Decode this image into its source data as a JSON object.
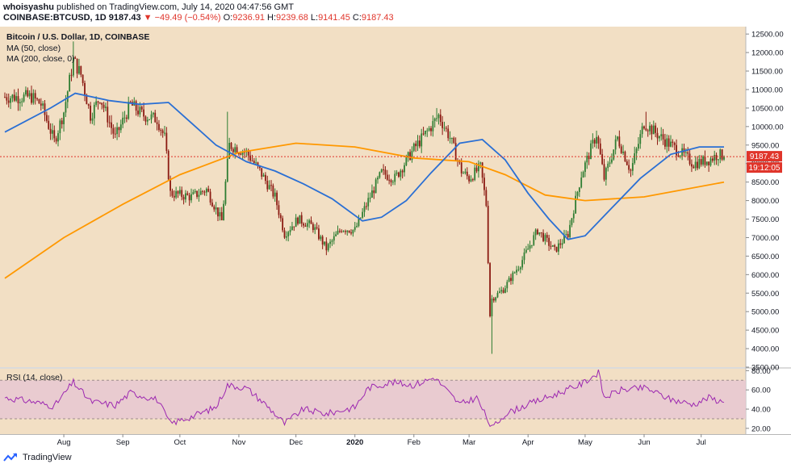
{
  "header": {
    "line1_user": "whoisyashu",
    "line1_text": "published on TradingView.com, July 14, 2020 04:47:56 GMT",
    "symbol": "COINBASE:BTCUSD, 1D",
    "last": "9187.43",
    "change_arrow": "▼",
    "change": "−49.49 (−0.54%)",
    "o_label": "O:",
    "o_value": "9236.91",
    "h_label": "H:",
    "h_value": "9239.68",
    "l_label": "L:",
    "l_value": "9141.45",
    "c_label": "C:",
    "c_value": "9187.43"
  },
  "legend": {
    "title": "Bitcoin / U.S. Dollar, 1D, COINBASE",
    "ma50": "MA (50, close)",
    "ma200": "MA (200, close, 0)",
    "rsi": "RSI (14, close)"
  },
  "price_tag": "9187.43",
  "time_tag": "19:12:05",
  "footer_brand": "TradingView",
  "colors": {
    "background": "#f2dfc4",
    "up": "#2e7d32",
    "down": "#8b1a12",
    "ma50": "#2a6fd4",
    "ma200": "#ff9800",
    "rsi_line": "#9c27b0",
    "rsi_band": "#e8c8d2",
    "price_tag": "#e0352b"
  },
  "chart_data": [
    {
      "type": "candlestick",
      "title": "Bitcoin / U.S. Dollar, 1D, COINBASE",
      "x": [
        "Aug",
        "Sep",
        "Oct",
        "Nov",
        "Dec",
        "2020",
        "Feb",
        "Mar",
        "Apr",
        "May",
        "Jun",
        "Jul"
      ],
      "ylim": [
        3500,
        12700
      ],
      "y_ticks": [
        3500,
        4000,
        4500,
        5000,
        5500,
        6000,
        6500,
        7000,
        7500,
        8000,
        8500,
        9000,
        9500,
        10000,
        10500,
        11000,
        11500,
        12000,
        12500
      ],
      "close_anchors": [
        {
          "date": "2019-07-15",
          "value": 10800
        },
        {
          "date": "2019-07-20",
          "value": 10600
        },
        {
          "date": "2019-07-27",
          "value": 9600
        },
        {
          "date": "2019-08-01",
          "value": 10400
        },
        {
          "date": "2019-08-06",
          "value": 11800
        },
        {
          "date": "2019-08-10",
          "value": 11400
        },
        {
          "date": "2019-08-15",
          "value": 10300
        },
        {
          "date": "2019-08-20",
          "value": 10800
        },
        {
          "date": "2019-08-28",
          "value": 9700
        },
        {
          "date": "2019-09-05",
          "value": 10600
        },
        {
          "date": "2019-09-12",
          "value": 10300
        },
        {
          "date": "2019-09-19",
          "value": 10200
        },
        {
          "date": "2019-09-23",
          "value": 9700
        },
        {
          "date": "2019-09-26",
          "value": 8200
        },
        {
          "date": "2019-10-07",
          "value": 8100
        },
        {
          "date": "2019-10-15",
          "value": 8300
        },
        {
          "date": "2019-10-23",
          "value": 7450
        },
        {
          "date": "2019-10-27",
          "value": 9500
        },
        {
          "date": "2019-11-05",
          "value": 9300
        },
        {
          "date": "2019-11-12",
          "value": 8800
        },
        {
          "date": "2019-11-20",
          "value": 8100
        },
        {
          "date": "2019-11-25",
          "value": 7100
        },
        {
          "date": "2019-12-02",
          "value": 7500
        },
        {
          "date": "2019-12-10",
          "value": 7300
        },
        {
          "date": "2019-12-17",
          "value": 6700
        },
        {
          "date": "2019-12-25",
          "value": 7250
        },
        {
          "date": "2020-01-01",
          "value": 7200
        },
        {
          "date": "2020-01-08",
          "value": 8000
        },
        {
          "date": "2020-01-15",
          "value": 8750
        },
        {
          "date": "2020-01-22",
          "value": 8600
        },
        {
          "date": "2020-02-01",
          "value": 9400
        },
        {
          "date": "2020-02-10",
          "value": 10000
        },
        {
          "date": "2020-02-14",
          "value": 10300
        },
        {
          "date": "2020-02-20",
          "value": 9700
        },
        {
          "date": "2020-02-26",
          "value": 8800
        },
        {
          "date": "2020-03-01",
          "value": 8600
        },
        {
          "date": "2020-03-07",
          "value": 8900
        },
        {
          "date": "2020-03-10",
          "value": 7900
        },
        {
          "date": "2020-03-12",
          "value": 4900
        },
        {
          "date": "2020-03-13",
          "value": 5350
        },
        {
          "date": "2020-03-19",
          "value": 5600
        },
        {
          "date": "2020-03-28",
          "value": 6300
        },
        {
          "date": "2020-04-06",
          "value": 7200
        },
        {
          "date": "2020-04-15",
          "value": 6650
        },
        {
          "date": "2020-04-22",
          "value": 7100
        },
        {
          "date": "2020-04-29",
          "value": 8700
        },
        {
          "date": "2020-05-07",
          "value": 9800
        },
        {
          "date": "2020-05-11",
          "value": 8600
        },
        {
          "date": "2020-05-18",
          "value": 9700
        },
        {
          "date": "2020-05-25",
          "value": 8800
        },
        {
          "date": "2020-06-01",
          "value": 10100
        },
        {
          "date": "2020-06-10",
          "value": 9700
        },
        {
          "date": "2020-06-20",
          "value": 9300
        },
        {
          "date": "2020-06-27",
          "value": 9000
        },
        {
          "date": "2020-07-05",
          "value": 9100
        },
        {
          "date": "2020-07-10",
          "value": 9250
        },
        {
          "date": "2020-07-13",
          "value": 9187.43
        }
      ],
      "wick_extremes": [
        {
          "date": "2019-08-06",
          "high": 12300
        },
        {
          "date": "2019-10-26",
          "high": 10400
        },
        {
          "date": "2020-02-13",
          "high": 10500
        },
        {
          "date": "2020-03-13",
          "low": 3860
        },
        {
          "date": "2020-06-02",
          "high": 10400
        }
      ],
      "series": [
        {
          "name": "MA (50, close)",
          "points": [
            {
              "date": "2019-07-01",
              "value": 9850
            },
            {
              "date": "2019-07-25",
              "value": 10500
            },
            {
              "date": "2019-08-07",
              "value": 10900
            },
            {
              "date": "2019-08-25",
              "value": 10700
            },
            {
              "date": "2019-09-10",
              "value": 10600
            },
            {
              "date": "2019-09-25",
              "value": 10650
            },
            {
              "date": "2019-10-07",
              "value": 10100
            },
            {
              "date": "2019-10-20",
              "value": 9500
            },
            {
              "date": "2019-11-05",
              "value": 9050
            },
            {
              "date": "2019-11-20",
              "value": 8800
            },
            {
              "date": "2019-12-05",
              "value": 8450
            },
            {
              "date": "2019-12-20",
              "value": 8050
            },
            {
              "date": "2020-01-05",
              "value": 7450
            },
            {
              "date": "2020-01-15",
              "value": 7550
            },
            {
              "date": "2020-01-28",
              "value": 8000
            },
            {
              "date": "2020-02-10",
              "value": 8750
            },
            {
              "date": "2020-02-25",
              "value": 9550
            },
            {
              "date": "2020-03-08",
              "value": 9650
            },
            {
              "date": "2020-03-20",
              "value": 9100
            },
            {
              "date": "2020-04-01",
              "value": 8200
            },
            {
              "date": "2020-04-12",
              "value": 7500
            },
            {
              "date": "2020-04-22",
              "value": 6950
            },
            {
              "date": "2020-05-01",
              "value": 7050
            },
            {
              "date": "2020-05-15",
              "value": 7800
            },
            {
              "date": "2020-05-30",
              "value": 8600
            },
            {
              "date": "2020-06-15",
              "value": 9250
            },
            {
              "date": "2020-06-30",
              "value": 9450
            },
            {
              "date": "2020-07-13",
              "value": 9450
            }
          ]
        },
        {
          "name": "MA (200, close, 0)",
          "points": [
            {
              "date": "2019-07-01",
              "value": 5900
            },
            {
              "date": "2019-08-01",
              "value": 7000
            },
            {
              "date": "2019-09-01",
              "value": 7900
            },
            {
              "date": "2019-10-01",
              "value": 8700
            },
            {
              "date": "2019-11-01",
              "value": 9300
            },
            {
              "date": "2019-12-01",
              "value": 9550
            },
            {
              "date": "2020-01-01",
              "value": 9450
            },
            {
              "date": "2020-02-01",
              "value": 9150
            },
            {
              "date": "2020-03-01",
              "value": 9050
            },
            {
              "date": "2020-03-20",
              "value": 8700
            },
            {
              "date": "2020-04-10",
              "value": 8150
            },
            {
              "date": "2020-05-01",
              "value": 8000
            },
            {
              "date": "2020-06-01",
              "value": 8100
            },
            {
              "date": "2020-07-13",
              "value": 8500
            }
          ]
        }
      ]
    },
    {
      "type": "line",
      "title": "RSI (14, close)",
      "ylim": [
        14,
        82
      ],
      "y_ticks": [
        20,
        40,
        60,
        80
      ],
      "band": [
        30,
        70
      ],
      "series": [
        {
          "points": [
            {
              "date": "2019-07-01",
              "value": 52
            },
            {
              "date": "2019-07-15",
              "value": 48
            },
            {
              "date": "2019-07-27",
              "value": 43
            },
            {
              "date": "2019-08-06",
              "value": 68
            },
            {
              "date": "2019-08-15",
              "value": 48
            },
            {
              "date": "2019-08-28",
              "value": 44
            },
            {
              "date": "2019-09-05",
              "value": 57
            },
            {
              "date": "2019-09-19",
              "value": 50
            },
            {
              "date": "2019-09-26",
              "value": 25
            },
            {
              "date": "2019-10-07",
              "value": 32
            },
            {
              "date": "2019-10-20",
              "value": 42
            },
            {
              "date": "2019-10-26",
              "value": 65
            },
            {
              "date": "2019-11-05",
              "value": 62
            },
            {
              "date": "2019-11-15",
              "value": 45
            },
            {
              "date": "2019-11-25",
              "value": 25
            },
            {
              "date": "2019-12-05",
              "value": 40
            },
            {
              "date": "2019-12-17",
              "value": 35
            },
            {
              "date": "2020-01-01",
              "value": 42
            },
            {
              "date": "2020-01-08",
              "value": 62
            },
            {
              "date": "2020-01-20",
              "value": 68
            },
            {
              "date": "2020-02-01",
              "value": 65
            },
            {
              "date": "2020-02-12",
              "value": 73
            },
            {
              "date": "2020-02-25",
              "value": 45
            },
            {
              "date": "2020-03-05",
              "value": 52
            },
            {
              "date": "2020-03-13",
              "value": 20
            },
            {
              "date": "2020-03-20",
              "value": 35
            },
            {
              "date": "2020-04-01",
              "value": 45
            },
            {
              "date": "2020-04-15",
              "value": 55
            },
            {
              "date": "2020-04-29",
              "value": 66
            },
            {
              "date": "2020-05-08",
              "value": 78
            },
            {
              "date": "2020-05-11",
              "value": 52
            },
            {
              "date": "2020-05-20",
              "value": 60
            },
            {
              "date": "2020-06-02",
              "value": 62
            },
            {
              "date": "2020-06-15",
              "value": 50
            },
            {
              "date": "2020-06-27",
              "value": 45
            },
            {
              "date": "2020-07-05",
              "value": 52
            },
            {
              "date": "2020-07-13",
              "value": 47
            }
          ]
        }
      ]
    }
  ]
}
